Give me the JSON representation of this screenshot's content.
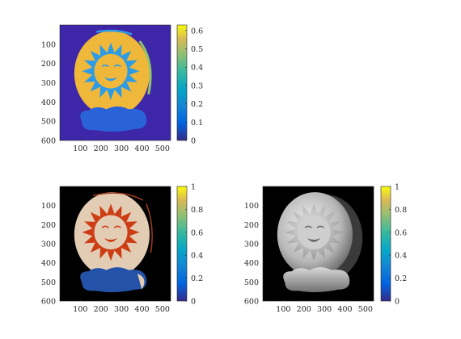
{
  "chart_data": [
    {
      "type": "heatmap",
      "title": "",
      "content": "segmentation label map of a sun-face ornament (indexed colors)",
      "colormap": "parula",
      "x_ticks": [
        "100",
        "200",
        "300",
        "400",
        "500"
      ],
      "y_ticks": [
        "100",
        "200",
        "300",
        "400",
        "500",
        "600"
      ],
      "xlim": [
        0,
        540
      ],
      "ylim": [
        0,
        600
      ],
      "colorbar": {
        "ticks": [
          "0",
          "0.1",
          "0.2",
          "0.3",
          "0.4",
          "0.5",
          "0.6"
        ],
        "range": [
          0,
          0.63
        ]
      },
      "colors": {
        "background": "#3e26a8",
        "face": "#f0b83a",
        "rays": "#2d9be6",
        "cloud": "#2a62d8",
        "rim": "#8fc66a"
      }
    },
    {
      "type": "heatmap",
      "title": "",
      "content": "RGB texture of the ornament",
      "x_ticks": [
        "100",
        "200",
        "300",
        "400",
        "500"
      ],
      "y_ticks": [
        "100",
        "200",
        "300",
        "400",
        "500",
        "600"
      ],
      "xlim": [
        0,
        540
      ],
      "ylim": [
        0,
        600
      ],
      "colorbar": {
        "ticks": [
          "0",
          "0.2",
          "0.4",
          "0.6",
          "0.8",
          "1"
        ],
        "range": [
          0,
          1
        ]
      },
      "colors": {
        "background": "#000000",
        "face": "#e3ccb4",
        "rays": "#cc3d14",
        "cloud": "#2452a8"
      }
    },
    {
      "type": "heatmap",
      "title": "",
      "content": "grayscale shaded surface of the ornament",
      "x_ticks": [
        "100",
        "200",
        "300",
        "400",
        "500"
      ],
      "y_ticks": [
        "100",
        "200",
        "300",
        "400",
        "500",
        "600"
      ],
      "xlim": [
        0,
        540
      ],
      "ylim": [
        0,
        600
      ],
      "colorbar": {
        "ticks": [
          "0",
          "0.2",
          "0.4",
          "0.6",
          "0.8",
          "1"
        ],
        "range": [
          0,
          1
        ]
      },
      "colors": {
        "background": "#000000",
        "face": "#bdbdbd",
        "rays": "#d6d6d6",
        "cloud": "#a8a8a8"
      }
    }
  ]
}
